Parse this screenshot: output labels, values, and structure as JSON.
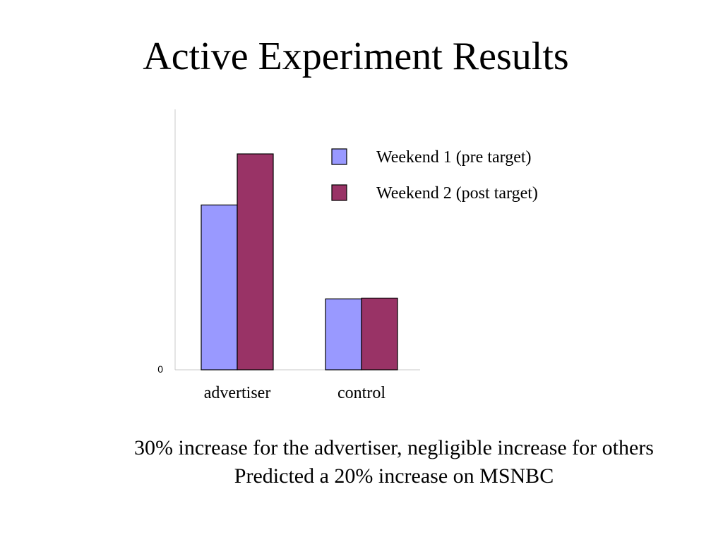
{
  "slide": {
    "title": "Active Experiment Results",
    "notes": [
      "30% increase for the advertiser, negligible increase for others",
      "Predicted a 20% increase on MSNBC"
    ]
  },
  "chart_data": {
    "type": "bar",
    "categories": [
      "advertiser",
      "control"
    ],
    "series": [
      {
        "name": "Weekend 1 (pre target)",
        "values": [
          100,
          43
        ],
        "color": "#9999FF"
      },
      {
        "name": "Weekend 2 (post target)",
        "values": [
          131,
          43.5
        ],
        "color": "#993366"
      }
    ],
    "y_tick_labels": [
      "0"
    ],
    "ylim": [
      0,
      158
    ],
    "grid": false,
    "legend_position": "top-right",
    "title": "",
    "xlabel": "",
    "ylabel": ""
  }
}
